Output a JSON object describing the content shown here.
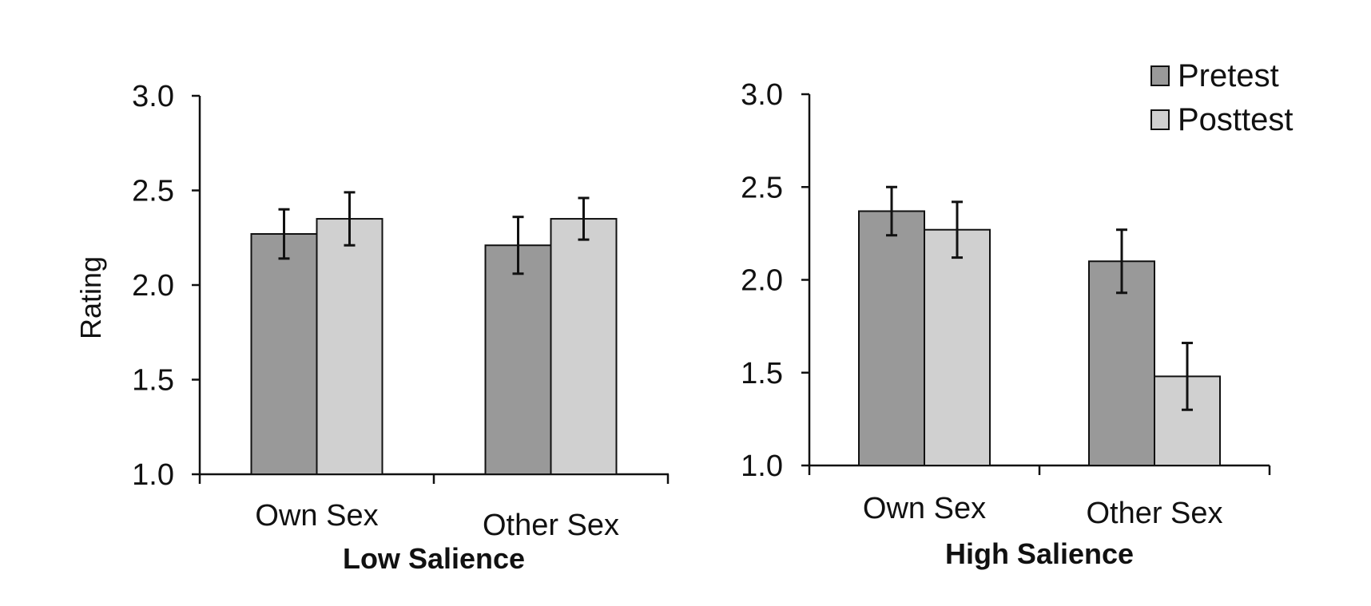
{
  "chart_data": [
    {
      "type": "bar",
      "title": "Low Salience",
      "ylabel": "Rating",
      "xlabel": "",
      "ylim": [
        1.0,
        3.0
      ],
      "yticks": [
        "1.0",
        "1.5",
        "2.0",
        "2.5",
        "3.0"
      ],
      "categories": [
        "Own Sex",
        "Other Sex"
      ],
      "series": [
        {
          "name": "Pretest",
          "color": "#999999",
          "values": [
            2.27,
            2.21
          ],
          "errors": [
            0.13,
            0.15
          ]
        },
        {
          "name": "Posttest",
          "color": "#d0d0d0",
          "values": [
            2.35,
            2.35
          ],
          "errors": [
            0.14,
            0.11
          ]
        }
      ],
      "legend": false
    },
    {
      "type": "bar",
      "title": "High Salience",
      "ylabel": "",
      "xlabel": "",
      "ylim": [
        1.0,
        3.0
      ],
      "yticks": [
        "1.0",
        "1.5",
        "2.0",
        "2.5",
        "3.0"
      ],
      "categories": [
        "Own Sex",
        "Other Sex"
      ],
      "series": [
        {
          "name": "Pretest",
          "color": "#999999",
          "values": [
            2.37,
            2.1
          ],
          "errors": [
            0.13,
            0.17
          ]
        },
        {
          "name": "Posttest",
          "color": "#d0d0d0",
          "values": [
            2.27,
            1.48
          ],
          "errors": [
            0.15,
            0.18
          ]
        }
      ],
      "legend": true,
      "legend_position": "top-right"
    }
  ]
}
